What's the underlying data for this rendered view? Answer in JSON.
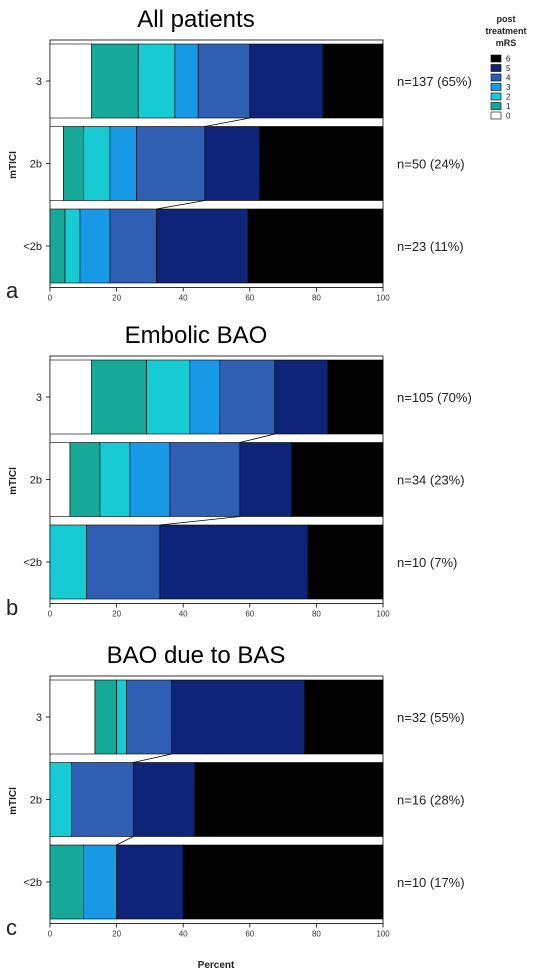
{
  "legend": {
    "title": [
      "post",
      "treatment",
      "mRS"
    ],
    "entries": [
      "6",
      "5",
      "4",
      "3",
      "2",
      "1",
      "0"
    ]
  },
  "colors": {
    "0": "#ffffff",
    "1": "#16a99a",
    "2": "#16cbd2",
    "3": "#1799e6",
    "4": "#2f5fb3",
    "5": "#0e2478",
    "6": "#000000"
  },
  "xlabel": "Percent",
  "ylabel": "mTICI",
  "xticks": [
    "0",
    "20",
    "40",
    "60",
    "80",
    "100"
  ],
  "chart_data": [
    {
      "type": "bar",
      "stacked": true,
      "orientation": "horizontal",
      "panel": "a",
      "title": "All patients",
      "xlabel": "",
      "ylabel": "mTICI",
      "xlim": [
        0,
        100
      ],
      "categories": [
        "3",
        "2b",
        "<2b"
      ],
      "n_labels": [
        "n=137 (65%)",
        "n=50 (24%)",
        "n=23 (11%)"
      ],
      "series": [
        {
          "name": "0",
          "values": [
            12.5,
            4,
            0
          ]
        },
        {
          "name": "1",
          "values": [
            14,
            6,
            4.5
          ]
        },
        {
          "name": "2",
          "values": [
            11,
            8,
            4.5
          ]
        },
        {
          "name": "3",
          "values": [
            7,
            8,
            9
          ]
        },
        {
          "name": "4",
          "values": [
            15.5,
            20.5,
            14
          ]
        },
        {
          "name": "5",
          "values": [
            22,
            16.5,
            27.5
          ]
        },
        {
          "name": "6",
          "values": [
            18,
            37,
            40.5
          ]
        }
      ]
    },
    {
      "type": "bar",
      "stacked": true,
      "orientation": "horizontal",
      "panel": "b",
      "title": "Embolic BAO",
      "xlabel": "",
      "ylabel": "mTICI",
      "xlim": [
        0,
        100
      ],
      "categories": [
        "3",
        "2b",
        "<2b"
      ],
      "n_labels": [
        "n=105 (70%)",
        "n=34 (23%)",
        "n=10 (7%)"
      ],
      "series": [
        {
          "name": "0",
          "values": [
            12.5,
            6,
            0
          ]
        },
        {
          "name": "1",
          "values": [
            16.5,
            9,
            0
          ]
        },
        {
          "name": "2",
          "values": [
            13,
            9,
            11
          ]
        },
        {
          "name": "3",
          "values": [
            9,
            12,
            0
          ]
        },
        {
          "name": "4",
          "values": [
            16.5,
            21,
            22
          ]
        },
        {
          "name": "5",
          "values": [
            16,
            15.5,
            44.5
          ]
        },
        {
          "name": "6",
          "values": [
            16.5,
            27.5,
            22.5
          ]
        }
      ]
    },
    {
      "type": "bar",
      "stacked": true,
      "orientation": "horizontal",
      "panel": "c",
      "title": "BAO due to BAS",
      "xlabel": "Percent",
      "ylabel": "mTICI",
      "xlim": [
        0,
        100
      ],
      "categories": [
        "3",
        "2b",
        "<2b"
      ],
      "n_labels": [
        "n=32 (55%)",
        "n=16 (28%)",
        "n=10 (17%)"
      ],
      "series": [
        {
          "name": "0",
          "values": [
            13.5,
            0,
            0
          ]
        },
        {
          "name": "1",
          "values": [
            6.5,
            0,
            10
          ]
        },
        {
          "name": "2",
          "values": [
            3,
            6.5,
            0
          ]
        },
        {
          "name": "3",
          "values": [
            0,
            0,
            10
          ]
        },
        {
          "name": "4",
          "values": [
            13.5,
            18.5,
            0
          ]
        },
        {
          "name": "5",
          "values": [
            40,
            18.5,
            20
          ]
        },
        {
          "name": "6",
          "values": [
            23.5,
            56.5,
            60
          ]
        }
      ]
    }
  ]
}
